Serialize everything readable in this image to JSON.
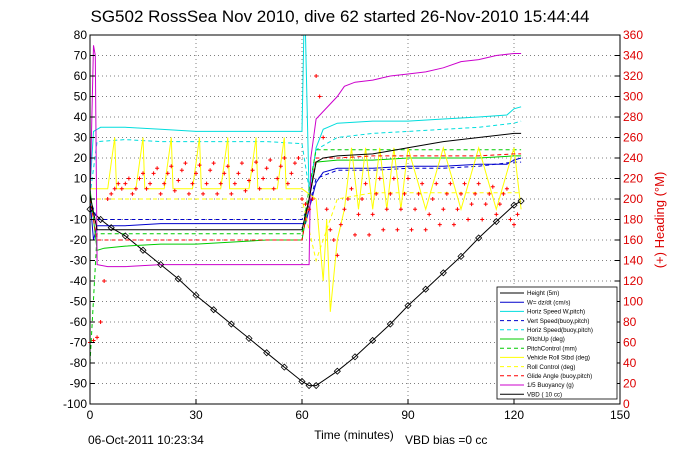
{
  "chart_data": {
    "type": "line",
    "title": "SG502 RossSea Nov 2010, dive 62 started 26-Nov-2010 15:44:44",
    "xlabel": "Time (minutes)",
    "ylabel_right": "(+) Heading (°M)",
    "xlim": [
      0,
      150
    ],
    "ylim": [
      -100,
      80
    ],
    "ylim_right": [
      0,
      360
    ],
    "xticks": [
      "0",
      "30",
      "60",
      "90",
      "120",
      "150"
    ],
    "yticks": [
      "80",
      "70",
      "60",
      "50",
      "40",
      "30",
      "20",
      "10",
      "0",
      "-10",
      "-20",
      "-30",
      "-40",
      "-50",
      "-60",
      "-70",
      "-80",
      "-90",
      "-100"
    ],
    "yticks_right": [
      "360",
      "340",
      "320",
      "300",
      "280",
      "260",
      "240",
      "220",
      "200",
      "180",
      "160",
      "140",
      "120",
      "100",
      "80",
      "60",
      "40",
      "20",
      "0"
    ],
    "grid": true,
    "legend_position": "lower-right",
    "footer_left": "06-Oct-2011 10:23:34",
    "footer_right": "VBD bias =0 cc",
    "series": [
      {
        "name": "Height (5m)",
        "color": "#000000",
        "dash": "solid",
        "marker": "none",
        "x": [
          0,
          3,
          6,
          10,
          15,
          20,
          25,
          30,
          35,
          40,
          45,
          50,
          55,
          60,
          62,
          64,
          70,
          75,
          80,
          85,
          90,
          95,
          100,
          105,
          110,
          115,
          120,
          122
        ],
        "y": [
          -5,
          -10,
          -14,
          -18,
          -25,
          -32,
          -39,
          -47,
          -54,
          -61,
          -68,
          -75,
          -82,
          -89,
          -91,
          -91,
          -84,
          -77,
          -69,
          -61,
          -52,
          -44,
          -36,
          -28,
          -19,
          -11,
          -3,
          -1
        ]
      },
      {
        "name": "W= dz/dt (cm/s)",
        "color": "#0000cc",
        "dash": "solid",
        "marker": "none",
        "x": [
          0,
          1,
          2,
          5,
          10,
          20,
          30,
          40,
          50,
          58,
          60,
          61,
          62,
          64,
          66,
          70,
          80,
          90,
          100,
          110,
          118,
          120,
          122
        ],
        "y": [
          0,
          -20,
          -13,
          -13,
          -13,
          -12,
          -12,
          -12,
          -12,
          -12,
          -12,
          -12,
          -5,
          8,
          13,
          15,
          15,
          16,
          16,
          17,
          17,
          19,
          20
        ]
      },
      {
        "name": "Horiz Speed W,pitch)",
        "color": "#00dddd",
        "dash": "solid",
        "marker": "none",
        "x": [
          0,
          1,
          3,
          5,
          10,
          20,
          30,
          40,
          50,
          58,
          60,
          60.5,
          61,
          62,
          64,
          66,
          70,
          80,
          90,
          100,
          110,
          118,
          120,
          122
        ],
        "y": [
          5,
          33,
          35,
          35,
          35,
          34,
          33,
          33,
          33,
          33,
          33,
          80,
          80,
          2,
          25,
          34,
          37,
          38,
          38,
          39,
          40,
          41,
          44,
          45
        ]
      },
      {
        "name": "Vert Speed(buoy,pitch)",
        "color": "#0000cc",
        "dash": "dash",
        "marker": "none",
        "x": [
          0,
          2,
          10,
          20,
          30,
          40,
          50,
          60,
          62,
          64,
          70,
          80,
          90,
          100,
          110,
          120,
          122
        ],
        "y": [
          0,
          -10,
          -10,
          -10,
          -10,
          -10,
          -10,
          -10,
          -3,
          10,
          14,
          14,
          15,
          15,
          16,
          18,
          18
        ]
      },
      {
        "name": "Horiz Speed(buoy,pitch)",
        "color": "#00dddd",
        "dash": "dash",
        "marker": "none",
        "x": [
          0,
          2,
          10,
          20,
          30,
          40,
          50,
          60,
          62,
          64,
          70,
          80,
          90,
          100,
          110,
          120,
          122
        ],
        "y": [
          2,
          28,
          29,
          28,
          28,
          28,
          28,
          27,
          5,
          24,
          30,
          32,
          33,
          34,
          35,
          37,
          38
        ]
      },
      {
        "name": "PitchUp (deg)",
        "color": "#00cc00",
        "dash": "solid",
        "marker": "none",
        "x": [
          0,
          2,
          4,
          10,
          20,
          30,
          40,
          50,
          60,
          62,
          64,
          70,
          80,
          90,
          100,
          110,
          120,
          122
        ],
        "y": [
          5,
          -25,
          -24,
          -23,
          -22,
          -22,
          -21,
          -20,
          -20,
          0,
          18,
          19,
          19,
          20,
          20,
          20,
          21,
          21
        ]
      },
      {
        "name": "PitchControl (mm)",
        "color": "#00cc00",
        "dash": "dash",
        "marker": "none",
        "x": [
          0,
          2,
          10,
          20,
          30,
          40,
          50,
          60,
          62,
          64,
          70,
          80,
          90,
          100,
          110,
          120,
          122
        ],
        "y": [
          -80,
          -17,
          -17,
          -17,
          -17,
          -17,
          -17,
          -17,
          5,
          24,
          24,
          24,
          24,
          24,
          24,
          24,
          24
        ]
      },
      {
        "name": "Vehicle Roll Stbd (deg)",
        "color": "#ffff00",
        "dash": "solid",
        "marker": "none",
        "x": [
          0,
          5,
          7,
          7.5,
          13,
          15,
          15.5,
          21,
          23,
          23.5,
          29,
          31,
          31.5,
          37,
          39,
          39.5,
          45,
          47,
          47.5,
          53,
          55,
          55.5,
          60,
          64,
          66,
          67,
          68,
          70,
          72,
          74,
          76,
          78,
          80,
          82,
          84,
          86,
          88,
          90,
          95,
          100,
          105,
          110,
          115,
          120,
          122
        ],
        "y": [
          5,
          5,
          30,
          5,
          5,
          30,
          5,
          5,
          30,
          5,
          5,
          30,
          5,
          5,
          30,
          5,
          5,
          30,
          5,
          5,
          30,
          5,
          5,
          0,
          -40,
          -10,
          -55,
          -20,
          -5,
          25,
          -5,
          25,
          -5,
          25,
          -5,
          25,
          -5,
          25,
          -5,
          25,
          -5,
          25,
          -5,
          25,
          -5
        ]
      },
      {
        "name": "Roll Control (deg)",
        "color": "#ffff00",
        "dash": "dash",
        "marker": "none",
        "x": [
          0,
          10,
          20,
          30,
          40,
          50,
          60,
          64,
          70,
          80,
          90,
          100,
          110,
          120,
          122
        ],
        "y": [
          0,
          0,
          0,
          0,
          0,
          0,
          0,
          -30,
          0,
          3,
          3,
          3,
          3,
          3,
          3
        ]
      },
      {
        "name": "Glide Angle (buoy,pitch)",
        "color": "#ff0000",
        "dash": "dash",
        "marker": "none",
        "x": [
          0,
          2,
          10,
          20,
          30,
          40,
          50,
          60,
          62,
          64,
          70,
          80,
          90,
          100,
          110,
          120,
          122
        ],
        "y": [
          0,
          -20,
          -20,
          -20,
          -20,
          -20,
          -20,
          -20,
          0,
          20,
          20,
          21,
          21,
          21,
          21,
          22,
          22
        ]
      },
      {
        "name": "1/5 Buoyancy (g)",
        "color": "#cc00cc",
        "dash": "solid",
        "marker": "none",
        "x": [
          0,
          1,
          1.5,
          2,
          5,
          10,
          20,
          30,
          40,
          50,
          60,
          62,
          62.5,
          64,
          70,
          72,
          75,
          80,
          85,
          90,
          95,
          100,
          105,
          110,
          115,
          120,
          122
        ],
        "y": [
          0,
          75,
          70,
          -32,
          -33,
          -33,
          -32,
          -32,
          -32,
          -32,
          -32,
          -32,
          20,
          39,
          50,
          55,
          57,
          58,
          60,
          61,
          62,
          64,
          67,
          68,
          70,
          71,
          71
        ]
      },
      {
        "name": "VBD ( 10 cc)",
        "color": "#000000",
        "dash": "solid",
        "marker": "none",
        "x": [
          0,
          2,
          10,
          20,
          30,
          40,
          50,
          60,
          62,
          64,
          66,
          70,
          80,
          90,
          100,
          110,
          120,
          122
        ],
        "y": [
          2,
          -15,
          -15,
          -15,
          -15,
          -15,
          -15,
          -15,
          0,
          18,
          20,
          21,
          22,
          25,
          28,
          30,
          32,
          32
        ]
      }
    ],
    "depth_markers": {
      "x": [
        0,
        3,
        6,
        10,
        15,
        20,
        25,
        30,
        35,
        40,
        45,
        50,
        55,
        60,
        62,
        64,
        70,
        75,
        80,
        85,
        90,
        95,
        100,
        105,
        110,
        115,
        120,
        122
      ],
      "y": [
        -5,
        -10,
        -14,
        -18,
        -25,
        -32,
        -39,
        -47,
        -54,
        -61,
        -68,
        -75,
        -82,
        -89,
        -91,
        -91,
        -84,
        -77,
        -69,
        -61,
        -52,
        -44,
        -36,
        -28,
        -19,
        -11,
        -3,
        -1
      ]
    },
    "heading_points": {
      "axis": "right",
      "color": "#ff0000",
      "marker": "plus",
      "x": [
        0,
        1,
        2,
        3,
        4,
        5,
        6,
        7,
        8,
        9,
        10,
        11,
        12,
        13,
        14,
        15,
        16,
        17,
        18,
        19,
        20,
        21,
        22,
        23,
        24,
        25,
        26,
        27,
        28,
        29,
        30,
        31,
        32,
        33,
        34,
        35,
        36,
        37,
        38,
        39,
        40,
        41,
        42,
        43,
        44,
        45,
        46,
        47,
        48,
        49,
        50,
        51,
        52,
        53,
        54,
        55,
        56,
        57,
        58,
        59,
        60,
        61,
        62,
        63,
        64,
        65,
        66,
        67,
        68,
        69,
        70,
        71,
        72,
        73,
        74,
        75,
        76,
        77,
        78,
        79,
        80,
        81,
        82,
        83,
        84,
        85,
        86,
        87,
        88,
        89,
        90,
        91,
        92,
        93,
        94,
        95,
        96,
        97,
        98,
        99,
        100,
        101,
        102,
        103,
        104,
        105,
        106,
        107,
        108,
        109,
        110,
        111,
        112,
        113,
        114,
        115,
        116,
        117,
        118,
        119,
        120,
        121
      ],
      "y": [
        60,
        62,
        65,
        80,
        120,
        200,
        205,
        210,
        215,
        210,
        215,
        220,
        205,
        210,
        220,
        225,
        210,
        215,
        225,
        230,
        205,
        215,
        225,
        232,
        208,
        218,
        228,
        235,
        205,
        215,
        225,
        233,
        205,
        215,
        228,
        235,
        205,
        215,
        225,
        232,
        205,
        215,
        225,
        235,
        208,
        218,
        228,
        236,
        210,
        220,
        230,
        238,
        210,
        220,
        232,
        240,
        215,
        225,
        235,
        240,
        200,
        195,
        190,
        200,
        320,
        300,
        260,
        190,
        170,
        160,
        145,
        175,
        190,
        200,
        210,
        165,
        185,
        200,
        215,
        165,
        185,
        205,
        220,
        170,
        190,
        205,
        220,
        170,
        190,
        205,
        220,
        170,
        190,
        205,
        215,
        170,
        185,
        200,
        215,
        175,
        190,
        205,
        215,
        175,
        190,
        205,
        215,
        180,
        195,
        205,
        215,
        180,
        195,
        205,
        212,
        185,
        195,
        205,
        210,
        180,
        175,
        185
      ]
    }
  }
}
